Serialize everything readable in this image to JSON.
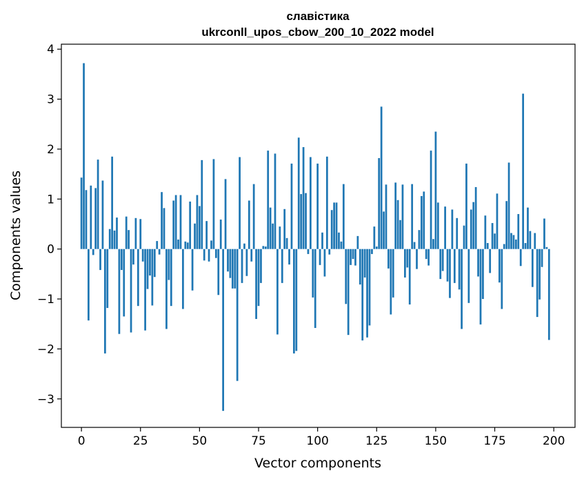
{
  "chart_data": {
    "type": "bar",
    "title": "славістика",
    "subtitle": "ukrconll_upos_cbow_200_10_2022 model",
    "xlabel": "Vector components",
    "ylabel": "Components values",
    "xlim": [
      -8.5,
      209
    ],
    "ylim": [
      -3.57,
      4.1
    ],
    "xticks": [
      0,
      25,
      50,
      75,
      100,
      125,
      150,
      175,
      200
    ],
    "yticks": [
      -3,
      -2,
      -1,
      0,
      1,
      2,
      3,
      4
    ],
    "xtick_labels": [
      "0",
      "25",
      "50",
      "75",
      "100",
      "125",
      "150",
      "175",
      "200"
    ],
    "ytick_labels": [
      "−3",
      "−2",
      "−1",
      "0",
      "1",
      "2",
      "3",
      "4"
    ],
    "bar_color": "#1f77b4",
    "grid": false,
    "legend": "none",
    "values": [
      1.43,
      3.72,
      1.18,
      -1.43,
      1.27,
      -0.12,
      1.22,
      1.79,
      -0.42,
      1.37,
      -2.09,
      -1.18,
      0.4,
      1.85,
      0.37,
      0.63,
      -1.7,
      -0.42,
      -1.35,
      0.65,
      0.38,
      -1.67,
      -0.31,
      0.62,
      -1.14,
      0.6,
      -0.25,
      -1.63,
      -0.8,
      -0.53,
      -1.13,
      -0.56,
      0.16,
      -0.11,
      1.14,
      0.82,
      -1.6,
      -0.62,
      -1.14,
      0.97,
      1.08,
      0.19,
      1.08,
      -1.2,
      0.15,
      0.13,
      0.95,
      -0.83,
      0.51,
      1.08,
      0.86,
      1.78,
      -0.23,
      0.56,
      -0.25,
      0.17,
      1.8,
      -0.18,
      -0.92,
      0.59,
      -3.24,
      1.4,
      -0.45,
      -0.58,
      -0.79,
      -0.79,
      -2.64,
      1.84,
      -0.68,
      0.11,
      -0.54,
      0.97,
      -0.25,
      1.3,
      -1.4,
      -1.14,
      -0.68,
      0.06,
      0.05,
      1.97,
      0.83,
      0.51,
      1.91,
      -1.71,
      0.45,
      -0.68,
      0.8,
      0.22,
      -0.31,
      1.71,
      -2.09,
      -2.04,
      2.23,
      1.1,
      2.04,
      1.12,
      -0.1,
      1.84,
      -0.97,
      -1.58,
      1.71,
      -0.32,
      0.33,
      -0.55,
      1.85,
      -0.11,
      0.78,
      0.93,
      0.93,
      0.33,
      0.15,
      1.3,
      -1.1,
      -1.72,
      -0.32,
      -0.2,
      -0.33,
      0.26,
      -0.71,
      -1.83,
      -0.57,
      -1.77,
      -1.53,
      -0.1,
      0.45,
      0.05,
      1.82,
      2.85,
      0.75,
      1.29,
      -0.39,
      -1.31,
      -0.97,
      1.33,
      0.98,
      0.58,
      1.29,
      -0.57,
      -0.37,
      -1.11,
      1.3,
      0.14,
      -0.4,
      0.38,
      1.06,
      1.15,
      -0.2,
      -0.33,
      1.97,
      0.2,
      2.35,
      0.93,
      -0.6,
      -0.44,
      0.85,
      -0.65,
      -0.98,
      0.79,
      -0.68,
      0.62,
      -0.81,
      -1.6,
      0.47,
      1.71,
      -1.08,
      0.79,
      0.94,
      1.24,
      -0.55,
      -1.51,
      -1.0,
      0.67,
      0.12,
      -0.48,
      0.52,
      0.31,
      1.11,
      -0.67,
      -1.2,
      0.1,
      0.96,
      1.73,
      0.32,
      0.28,
      0.19,
      0.7,
      -0.34,
      3.11,
      0.12,
      0.83,
      0.36,
      -0.76,
      0.32,
      -1.36,
      -1.01,
      -0.36,
      0.61,
      0.04,
      -1.82,
      0
    ]
  }
}
